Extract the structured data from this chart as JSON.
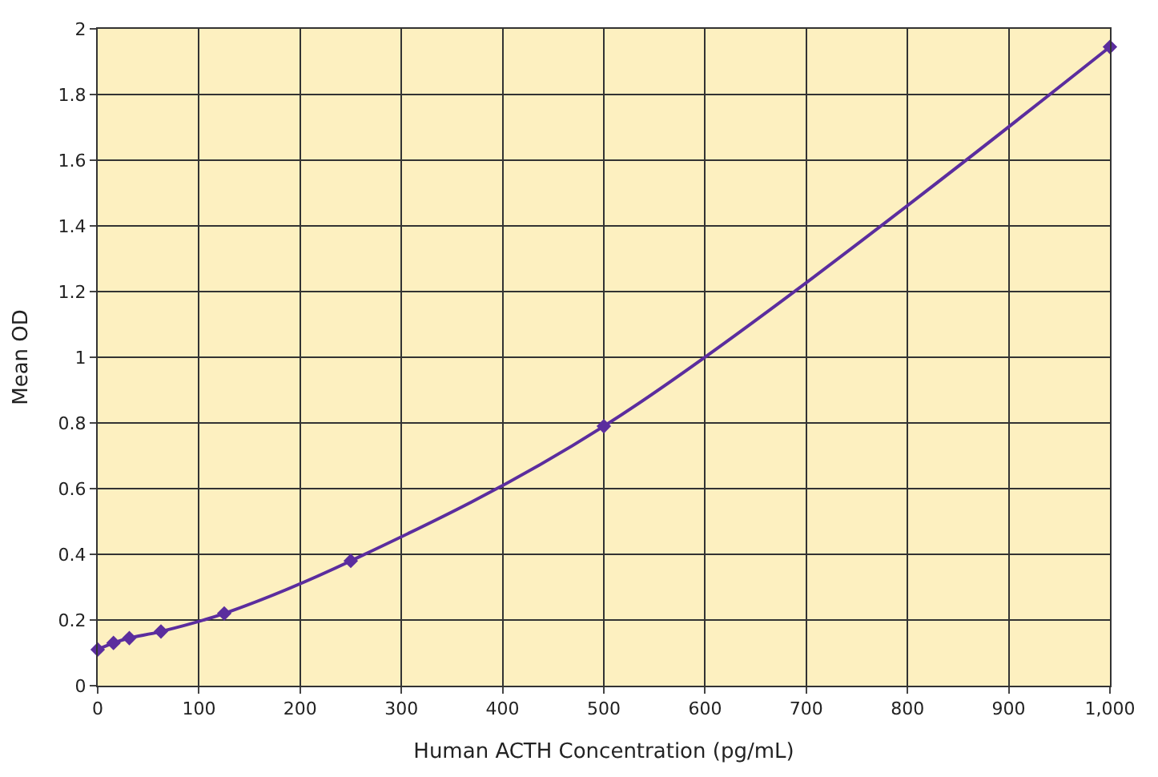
{
  "chart_data": {
    "type": "line",
    "xlabel": "Human ACTH Concentration (pg/mL)",
    "ylabel": "Mean OD",
    "x": [
      0,
      15.6,
      31.25,
      62.5,
      125,
      250,
      500,
      1000
    ],
    "series": [
      {
        "color": "#5b2d9e",
        "values": [
          0.11,
          0.13,
          0.145,
          0.165,
          0.22,
          0.38,
          0.79,
          1.945
        ]
      }
    ],
    "xlim": [
      0,
      1000
    ],
    "ylim": [
      0,
      2
    ],
    "xticks": [
      0,
      100,
      200,
      300,
      400,
      500,
      600,
      700,
      800,
      900,
      {
        "value": 1000,
        "label": "1,000"
      }
    ],
    "yticks": [
      0,
      0.2,
      0.4,
      0.6,
      0.8,
      1,
      1.2,
      1.4,
      1.6,
      1.8,
      2
    ],
    "grid": true,
    "marker": "diamond",
    "line_style": "solid",
    "legend": false
  }
}
